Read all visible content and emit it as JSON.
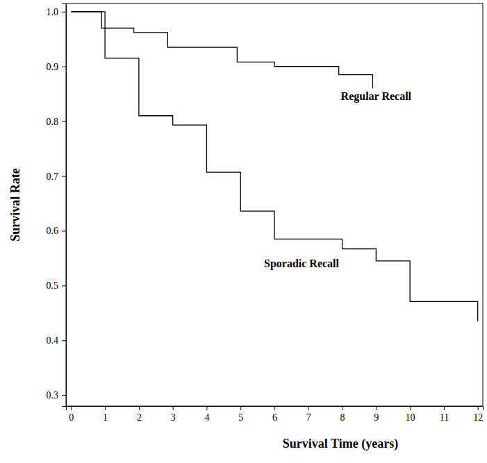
{
  "chart_data": {
    "type": "line",
    "x_label": "Survival Time (years)",
    "y_label": "Survival Rate",
    "xlim": [
      -0.15,
      12.15
    ],
    "ylim": [
      0.28,
      1.015
    ],
    "xticks": [
      0,
      1,
      2,
      3,
      4,
      5,
      6,
      7,
      8,
      9,
      10,
      11,
      12
    ],
    "yticks": [
      0.3,
      0.4,
      0.5,
      0.6,
      0.7,
      0.8,
      0.9,
      {
        "value": 1,
        "label": "1.0"
      }
    ],
    "grid": false,
    "line_style": "step",
    "series": [
      {
        "name": "Regular Recall",
        "color": "#000000",
        "x": [
          0,
          0.9,
          1.85,
          2.85,
          4.9,
          6.0,
          7.9,
          8.9
        ],
        "values": [
          1.0,
          0.97,
          0.962,
          0.935,
          0.908,
          0.9,
          0.885,
          0.86
        ]
      },
      {
        "name": "Sporadic Recall",
        "color": "#000000",
        "x": [
          0,
          1,
          2,
          3,
          4,
          5,
          6,
          8,
          9,
          10,
          12
        ],
        "values": [
          1.0,
          0.915,
          0.81,
          0.793,
          0.707,
          0.636,
          0.585,
          0.567,
          0.545,
          0.471,
          0.435
        ]
      }
    ],
    "annotations": [
      {
        "text": "Regular Recall",
        "x": 9.0,
        "y": 0.843
      },
      {
        "text": "Sporadic Recall",
        "x": 6.8,
        "y": 0.538
      }
    ]
  }
}
